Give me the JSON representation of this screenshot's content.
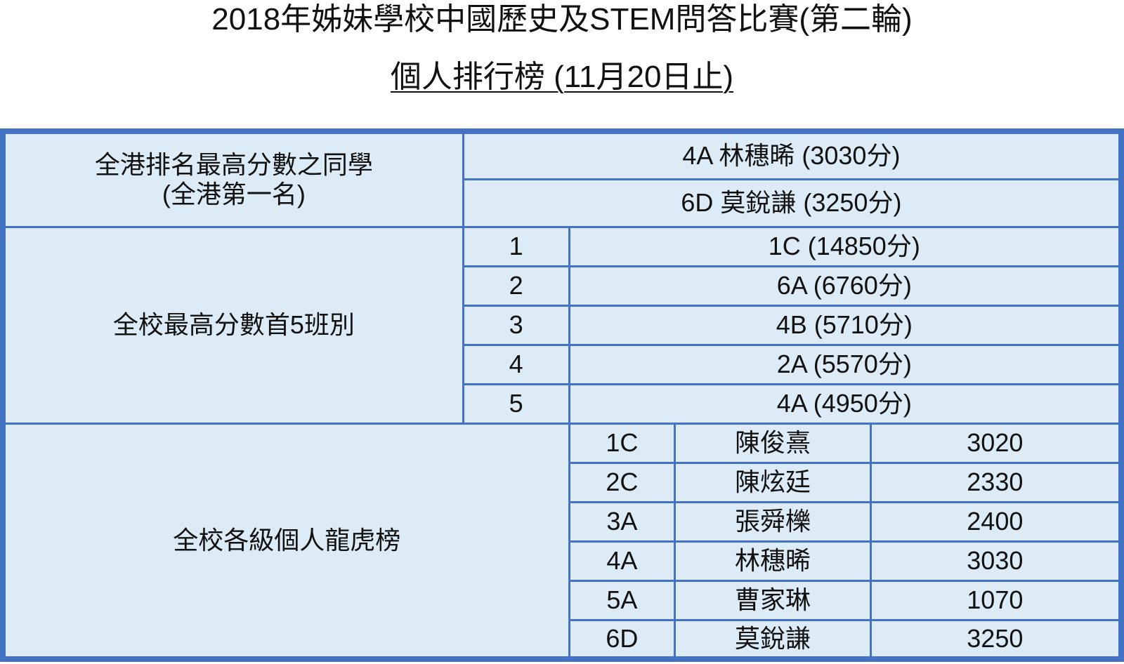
{
  "title": "2018年姊妹學校中國歷史及STEM問答比賽(第二輪)",
  "subtitle": "個人排行榜 (11月20日止)",
  "colors": {
    "border": "#4472c4",
    "cell_bg": "#ddebf7"
  },
  "hk_top": {
    "label_line1": "全港排名最高分數之同學",
    "label_line2": "(全港第一名)",
    "entries": [
      "4A 林穗晞 (3030分)",
      "6D 莫銳謙 (3250分)"
    ]
  },
  "top_classes": {
    "label": "全校最高分數首5班別",
    "rows": [
      {
        "rank": "1",
        "value": "1C (14850分)"
      },
      {
        "rank": "2",
        "value": "6A (6760分)"
      },
      {
        "rank": "3",
        "value": "4B (5710分)"
      },
      {
        "rank": "4",
        "value": "2A (5570分)"
      },
      {
        "rank": "5",
        "value": "4A (4950分)"
      }
    ]
  },
  "level_top": {
    "label": "全校各級個人龍虎榜",
    "rows": [
      {
        "class": "1C",
        "name": "陳俊熹",
        "score": "3020"
      },
      {
        "class": "2C",
        "name": "陳炫廷",
        "score": "2330"
      },
      {
        "class": "3A",
        "name": "張舜櫟",
        "score": "2400"
      },
      {
        "class": "4A",
        "name": "林穗晞",
        "score": "3030"
      },
      {
        "class": "5A",
        "name": "曹家琳",
        "score": "1070"
      },
      {
        "class": "6D",
        "name": "莫銳謙",
        "score": "3250"
      }
    ]
  }
}
